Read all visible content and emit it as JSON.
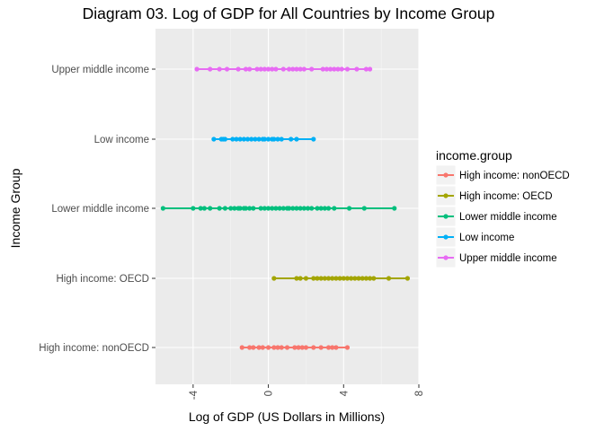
{
  "chart_data": {
    "type": "scatter",
    "title": "Diagram 03. Log of GDP for All Countries by Income Group",
    "xlabel": "Log of GDP (US Dollars in Millions)",
    "ylabel": "Income Group",
    "xlim": [
      -6,
      8
    ],
    "x_ticks": [
      -4,
      0,
      4,
      8
    ],
    "x_tick_labels": [
      "-4",
      "0",
      "4",
      "8"
    ],
    "categories": [
      "High income: nonOECD",
      "High income: OECD",
      "Lower middle income",
      "Low income",
      "Upper middle income"
    ],
    "grid": true,
    "legend_title": "income.group",
    "legend_position": "right",
    "series": [
      {
        "name": "High income: nonOECD",
        "color": "#F8766D",
        "values": [
          -1.4,
          -1.0,
          -0.8,
          -0.5,
          -0.3,
          0.0,
          0.3,
          0.5,
          0.7,
          1.0,
          1.4,
          1.6,
          1.8,
          2.0,
          2.4,
          2.8,
          3.2,
          3.4,
          3.6,
          4.2
        ]
      },
      {
        "name": "High income: OECD",
        "color": "#A3A500",
        "values": [
          0.3,
          1.5,
          1.7,
          2.0,
          2.4,
          2.6,
          2.8,
          3.0,
          3.2,
          3.4,
          3.6,
          3.8,
          4.0,
          4.2,
          4.4,
          4.6,
          4.8,
          5.0,
          5.2,
          5.4,
          5.6,
          6.4,
          7.4
        ]
      },
      {
        "name": "Lower middle income",
        "color": "#00BF7D",
        "values": [
          -5.6,
          -4.0,
          -3.6,
          -3.4,
          -3.1,
          -2.6,
          -2.3,
          -2.0,
          -1.8,
          -1.6,
          -1.5,
          -1.3,
          -1.2,
          -1.0,
          -0.8,
          -0.4,
          -0.2,
          0.0,
          0.2,
          0.4,
          0.6,
          0.8,
          1.0,
          1.1,
          1.3,
          1.5,
          1.7,
          1.9,
          2.1,
          2.3,
          2.6,
          2.8,
          3.0,
          3.2,
          3.5,
          4.3,
          5.1,
          6.7
        ]
      },
      {
        "name": "Low income",
        "color": "#00B0F6",
        "values": [
          -2.9,
          -2.5,
          -2.4,
          -2.3,
          -1.9,
          -1.7,
          -1.5,
          -1.3,
          -1.1,
          -0.9,
          -0.7,
          -0.5,
          -0.3,
          -0.2,
          0.0,
          0.2,
          0.3,
          0.5,
          0.7,
          1.2,
          1.5,
          2.4
        ]
      },
      {
        "name": "Upper middle income",
        "color": "#E76BF3",
        "values": [
          -3.8,
          -3.1,
          -2.6,
          -2.2,
          -1.6,
          -1.2,
          -1.0,
          -0.6,
          -0.4,
          -0.2,
          0.0,
          0.2,
          0.4,
          0.8,
          1.1,
          1.3,
          1.5,
          1.7,
          1.9,
          2.3,
          2.9,
          3.1,
          3.3,
          3.5,
          3.7,
          3.9,
          4.2,
          4.7,
          5.2,
          5.4
        ]
      }
    ]
  }
}
